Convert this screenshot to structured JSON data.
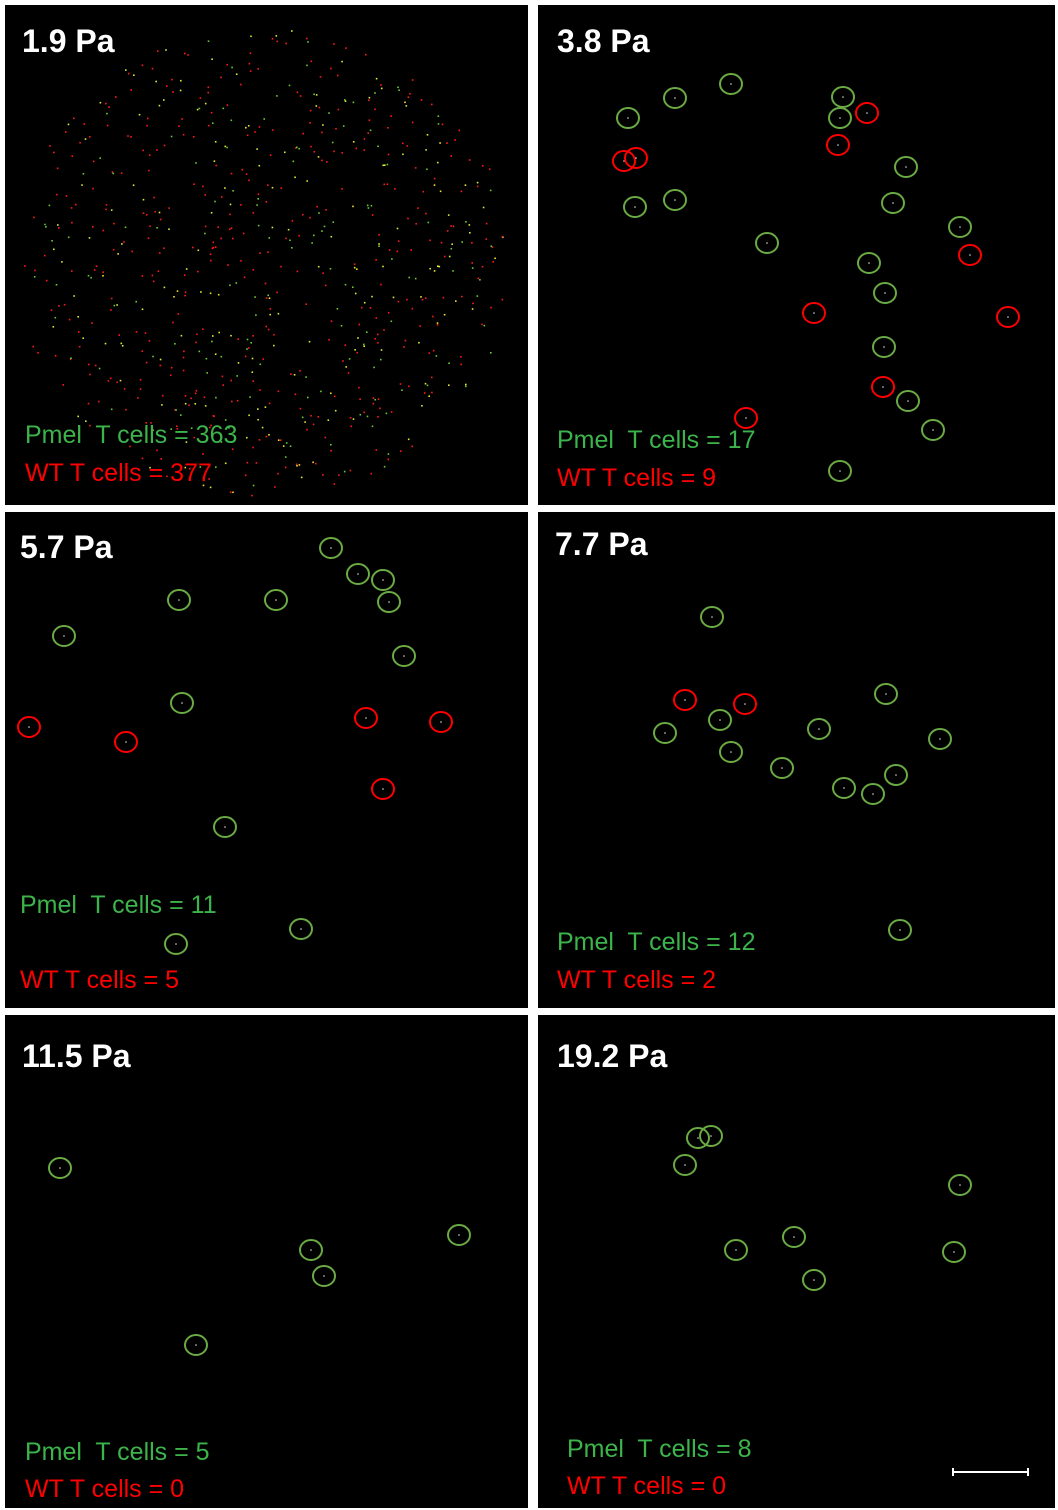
{
  "panels": [
    {
      "title": "1.9 Pa",
      "pmel_label": "Pmel  T cells = 363",
      "wt_label": "WT T cells = 377"
    },
    {
      "title": "3.8 Pa",
      "pmel_label": "Pmel  T cells = 17",
      "wt_label": "WT T cells = 9"
    },
    {
      "title": "5.7 Pa",
      "pmel_label": "Pmel  T cells = 11",
      "wt_label": "WT T cells = 5"
    },
    {
      "title": "7.7 Pa",
      "pmel_label": "Pmel  T cells = 12",
      "wt_label": "WT T cells = 2"
    },
    {
      "title": "11.5 Pa",
      "pmel_label": "Pmel  T cells = 5",
      "wt_label": "WT T cells = 0"
    },
    {
      "title": "19.2 Pa",
      "pmel_label": "Pmel  T cells = 8",
      "wt_label": "WT T cells = 0"
    }
  ]
}
